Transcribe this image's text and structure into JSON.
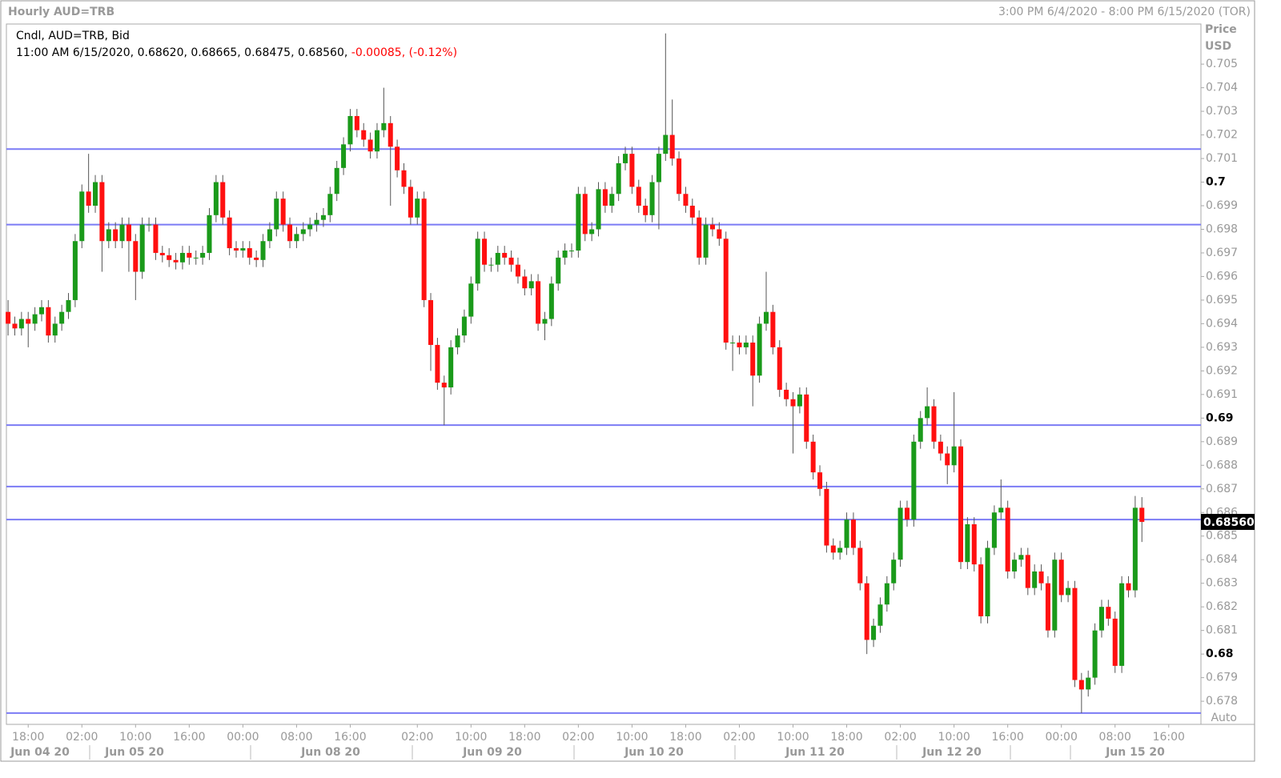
{
  "chart_data": {
    "type": "candlestick",
    "title": "Hourly AUD=TRB",
    "date_range": "3:00 PM 6/4/2020 - 8:00 PM 6/15/2020 (TOR)",
    "legend_line1": "Cndl, AUD=TRB, Bid",
    "legend_line2": "11:00 AM 6/15/2020, 0.68620, 0.68665, 0.68475, 0.68560, ",
    "legend_change": "-0.00085, (-0.12%)",
    "axis_label": "Price",
    "axis_unit": "USD",
    "scale_mode": "Auto",
    "up_color": "#1a9a1a",
    "down_color": "#ff1010",
    "level_color": "#7b7bf5",
    "open": [
      0.6945,
      0.694,
      0.6938,
      0.6942,
      0.694,
      0.6944,
      0.6947,
      0.6935,
      0.694,
      0.6945,
      0.695,
      0.6975,
      0.6996,
      0.699,
      0.7,
      0.6975,
      0.698,
      0.6975,
      0.6982,
      0.6975,
      0.6962,
      0.6982,
      0.6982,
      0.697,
      0.6969,
      0.6967,
      0.6966,
      0.697,
      0.6968,
      0.6968,
      0.697,
      0.6986,
      0.7,
      0.6985,
      0.6972,
      0.6971,
      0.6972,
      0.6968,
      0.6967,
      0.6975,
      0.698,
      0.6993,
      0.6982,
      0.6975,
      0.6978,
      0.698,
      0.6982,
      0.6984,
      0.6986,
      0.6995,
      0.7006,
      0.7016,
      0.7028,
      0.7022,
      0.7018,
      0.7013,
      0.7022,
      0.7025,
      0.7015,
      0.7005,
      0.6998,
      0.6985,
      0.6993,
      0.695,
      0.6931,
      0.6915,
      0.6913,
      0.693,
      0.6935,
      0.6943,
      0.6957,
      0.6976,
      0.6965,
      0.6965,
      0.697,
      0.6968,
      0.6965,
      0.696,
      0.6955,
      0.6958,
      0.694,
      0.6942,
      0.6957,
      0.6968,
      0.6971,
      0.6971,
      0.6995,
      0.6978,
      0.698,
      0.6997,
      0.699,
      0.6995,
      0.7008,
      0.7012,
      0.6998,
      0.699,
      0.6986,
      0.7,
      0.7012,
      0.702,
      0.701,
      0.6995,
      0.699,
      0.6985,
      0.6968,
      0.6982,
      0.698,
      0.6976,
      0.6932,
      0.6932,
      0.693,
      0.6932,
      0.6918,
      0.694,
      0.6945,
      0.693,
      0.6912,
      0.6908,
      0.6905,
      0.691,
      0.689,
      0.6877,
      0.687,
      0.6846,
      0.6843,
      0.6845,
      0.6857,
      0.6845,
      0.683,
      0.6806,
      0.6812,
      0.6821,
      0.683,
      0.684,
      0.6862,
      0.6857,
      0.689,
      0.69,
      0.6905,
      0.689,
      0.6885,
      0.688,
      0.6888,
      0.6839,
      0.6855,
      0.6838,
      0.6816,
      0.6845,
      0.686,
      0.6862,
      0.6835,
      0.684,
      0.6842,
      0.6828,
      0.6835,
      0.683,
      0.681,
      0.684,
      0.6825,
      0.6828,
      0.6789,
      0.6785,
      0.679,
      0.681,
      0.682,
      0.6815,
      0.6795,
      0.683,
      0.6827,
      0.6862
    ],
    "high": [
      0.695,
      0.6943,
      0.6945,
      0.6945,
      0.6947,
      0.695,
      0.695,
      0.6943,
      0.6948,
      0.6953,
      0.6978,
      0.6999,
      0.7012,
      0.7003,
      0.7003,
      0.6983,
      0.6983,
      0.6985,
      0.6985,
      0.6978,
      0.6985,
      0.6985,
      0.6985,
      0.6973,
      0.6972,
      0.697,
      0.6973,
      0.6973,
      0.6971,
      0.6973,
      0.6989,
      0.7003,
      0.7003,
      0.6988,
      0.6975,
      0.6975,
      0.6975,
      0.6971,
      0.6978,
      0.6983,
      0.6996,
      0.6996,
      0.6985,
      0.6981,
      0.6983,
      0.6985,
      0.6987,
      0.6989,
      0.6998,
      0.7009,
      0.7019,
      0.7031,
      0.7031,
      0.7025,
      0.7021,
      0.7025,
      0.704,
      0.7028,
      0.7018,
      0.7008,
      0.7001,
      0.6996,
      0.6996,
      0.6953,
      0.6934,
      0.6918,
      0.6933,
      0.6938,
      0.6946,
      0.696,
      0.6979,
      0.6979,
      0.6968,
      0.6973,
      0.6973,
      0.6971,
      0.6968,
      0.6963,
      0.6961,
      0.6961,
      0.6945,
      0.696,
      0.6971,
      0.6974,
      0.6974,
      0.6998,
      0.6998,
      0.6983,
      0.7,
      0.7,
      0.6998,
      0.7011,
      0.7015,
      0.7015,
      0.7001,
      0.6993,
      0.7003,
      0.7015,
      0.7063,
      0.7035,
      0.7013,
      0.6998,
      0.6993,
      0.6988,
      0.6985,
      0.6985,
      0.6983,
      0.6979,
      0.6935,
      0.6935,
      0.6935,
      0.6935,
      0.6943,
      0.6962,
      0.6948,
      0.6933,
      0.6915,
      0.6911,
      0.6913,
      0.6913,
      0.6893,
      0.688,
      0.6873,
      0.6849,
      0.6848,
      0.686,
      0.686,
      0.6848,
      0.6833,
      0.6815,
      0.6824,
      0.6833,
      0.6843,
      0.6865,
      0.6865,
      0.6893,
      0.6903,
      0.6913,
      0.6908,
      0.6893,
      0.6888,
      0.6911,
      0.6891,
      0.6858,
      0.6858,
      0.6841,
      0.6848,
      0.6863,
      0.6874,
      0.6865,
      0.6843,
      0.6845,
      0.6845,
      0.6838,
      0.6838,
      0.6833,
      0.6843,
      0.6843,
      0.6831,
      0.6831,
      0.6792,
      0.6793,
      0.6813,
      0.6823,
      0.6823,
      0.6818,
      0.6833,
      0.6833,
      0.6867,
      0.68665
    ],
    "low": [
      0.6935,
      0.6935,
      0.6935,
      0.693,
      0.6937,
      0.6941,
      0.6932,
      0.6932,
      0.6937,
      0.6942,
      0.6947,
      0.6972,
      0.6987,
      0.6987,
      0.6962,
      0.6972,
      0.6972,
      0.6972,
      0.6962,
      0.695,
      0.6959,
      0.6979,
      0.6967,
      0.6966,
      0.6964,
      0.6963,
      0.6963,
      0.6965,
      0.6965,
      0.6965,
      0.6967,
      0.6983,
      0.6982,
      0.6969,
      0.6968,
      0.6968,
      0.6965,
      0.6964,
      0.6964,
      0.6972,
      0.6977,
      0.6979,
      0.6972,
      0.6972,
      0.6975,
      0.6977,
      0.6979,
      0.6981,
      0.6983,
      0.6992,
      0.7003,
      0.7013,
      0.7019,
      0.7015,
      0.701,
      0.701,
      0.7019,
      0.699,
      0.7002,
      0.6995,
      0.6982,
      0.6982,
      0.6947,
      0.692,
      0.6912,
      0.6897,
      0.691,
      0.6927,
      0.6932,
      0.694,
      0.6954,
      0.6962,
      0.6962,
      0.6962,
      0.6965,
      0.6962,
      0.6957,
      0.6952,
      0.6952,
      0.6937,
      0.6933,
      0.6939,
      0.6954,
      0.6965,
      0.6968,
      0.6968,
      0.6975,
      0.6975,
      0.6977,
      0.6987,
      0.6987,
      0.6992,
      0.7005,
      0.6995,
      0.6987,
      0.6983,
      0.6983,
      0.698,
      0.7009,
      0.7007,
      0.6992,
      0.6987,
      0.6982,
      0.6965,
      0.6965,
      0.6977,
      0.6973,
      0.6929,
      0.692,
      0.6927,
      0.6927,
      0.6905,
      0.6915,
      0.6937,
      0.6927,
      0.6909,
      0.6905,
      0.6885,
      0.6902,
      0.6887,
      0.6874,
      0.6867,
      0.6843,
      0.684,
      0.684,
      0.6842,
      0.6842,
      0.6827,
      0.68,
      0.6803,
      0.6809,
      0.6818,
      0.6827,
      0.6837,
      0.6854,
      0.6854,
      0.6887,
      0.6897,
      0.6887,
      0.6882,
      0.6872,
      0.6877,
      0.6836,
      0.6836,
      0.6835,
      0.6813,
      0.6813,
      0.6842,
      0.6857,
      0.6832,
      0.6832,
      0.6837,
      0.6825,
      0.6825,
      0.6827,
      0.6807,
      0.6807,
      0.6822,
      0.6822,
      0.6786,
      0.6775,
      0.6782,
      0.6787,
      0.6807,
      0.6812,
      0.6792,
      0.6792,
      0.6824,
      0.6824,
      0.68475
    ],
    "close": [
      0.694,
      0.6938,
      0.6942,
      0.694,
      0.6944,
      0.6947,
      0.6935,
      0.694,
      0.6945,
      0.695,
      0.6975,
      0.6996,
      0.699,
      0.7,
      0.6975,
      0.698,
      0.6975,
      0.6982,
      0.6975,
      0.6962,
      0.6982,
      0.6982,
      0.697,
      0.6969,
      0.6967,
      0.6966,
      0.697,
      0.6968,
      0.6968,
      0.697,
      0.6986,
      0.7,
      0.6985,
      0.6972,
      0.6971,
      0.6972,
      0.6968,
      0.6967,
      0.6975,
      0.698,
      0.6993,
      0.6982,
      0.6975,
      0.6978,
      0.698,
      0.6982,
      0.6984,
      0.6986,
      0.6995,
      0.7006,
      0.7016,
      0.7028,
      0.7022,
      0.7018,
      0.7013,
      0.7022,
      0.7025,
      0.7015,
      0.7005,
      0.6998,
      0.6985,
      0.6993,
      0.695,
      0.6931,
      0.6915,
      0.6913,
      0.693,
      0.6935,
      0.6943,
      0.6957,
      0.6976,
      0.6965,
      0.6965,
      0.697,
      0.6968,
      0.6965,
      0.696,
      0.6955,
      0.6958,
      0.694,
      0.6942,
      0.6957,
      0.6968,
      0.6971,
      0.6971,
      0.6995,
      0.6978,
      0.698,
      0.6997,
      0.699,
      0.6995,
      0.7008,
      0.7012,
      0.6998,
      0.699,
      0.6986,
      0.7,
      0.7012,
      0.702,
      0.701,
      0.6995,
      0.699,
      0.6985,
      0.6968,
      0.6982,
      0.698,
      0.6976,
      0.6932,
      0.6932,
      0.693,
      0.6932,
      0.6918,
      0.694,
      0.6945,
      0.693,
      0.6912,
      0.6908,
      0.6905,
      0.691,
      0.689,
      0.6877,
      0.687,
      0.6846,
      0.6843,
      0.6845,
      0.6857,
      0.6845,
      0.683,
      0.6806,
      0.6812,
      0.6821,
      0.683,
      0.684,
      0.6862,
      0.6857,
      0.689,
      0.69,
      0.6905,
      0.689,
      0.6885,
      0.688,
      0.6888,
      0.6839,
      0.6855,
      0.6838,
      0.6816,
      0.6845,
      0.686,
      0.6862,
      0.6835,
      0.684,
      0.6842,
      0.6828,
      0.6835,
      0.683,
      0.681,
      0.684,
      0.6825,
      0.6828,
      0.6789,
      0.6785,
      0.679,
      0.681,
      0.682,
      0.6815,
      0.6795,
      0.683,
      0.6827,
      0.6862,
      0.6856
    ],
    "levels": [
      0.7014,
      0.6982,
      0.6897,
      0.6871,
      0.6857,
      0.6775
    ],
    "last_price": {
      "value": 0.6856,
      "label": "0.68560"
    },
    "xlim": [
      -0.25,
      177.8
    ],
    "xticks": [
      {
        "value": 3,
        "label": "18:00"
      },
      {
        "value": 11,
        "label": "02:00"
      },
      {
        "value": 19,
        "label": "10:00"
      },
      {
        "value": 27,
        "label": "16:00"
      },
      {
        "value": 35,
        "label": "00:00"
      },
      {
        "value": 43,
        "label": "08:00"
      },
      {
        "value": 51,
        "label": "16:00"
      },
      {
        "value": 61,
        "label": "02:00"
      },
      {
        "value": 69,
        "label": "10:00"
      },
      {
        "value": 77,
        "label": "18:00"
      },
      {
        "value": 85,
        "label": "02:00"
      },
      {
        "value": 93,
        "label": "10:00"
      },
      {
        "value": 101,
        "label": "18:00"
      },
      {
        "value": 109,
        "label": "02:00"
      },
      {
        "value": 117,
        "label": "10:00"
      },
      {
        "value": 125,
        "label": "18:00"
      },
      {
        "value": 133,
        "label": "02:00"
      },
      {
        "value": 141,
        "label": "10:00"
      },
      {
        "value": 149,
        "label": "16:00"
      },
      {
        "value": 157,
        "label": "00:00"
      },
      {
        "value": 165,
        "label": "08:00"
      },
      {
        "value": 173,
        "label": "16:00"
      }
    ],
    "date_labels": [
      "Jun 04 20",
      "Jun 05 20",
      "Jun 08 20",
      "Jun 09 20",
      "Jun 10 20",
      "Jun 11 20",
      "Jun 12 20",
      "Jun 15 20"
    ],
    "ylim": [
      0.67702,
      0.7067
    ],
    "yticks": [
      0.678,
      0.679,
      0.68,
      0.681,
      0.682,
      0.683,
      0.684,
      0.685,
      0.686,
      0.687,
      0.688,
      0.689,
      0.69,
      0.691,
      0.692,
      0.693,
      0.694,
      0.695,
      0.696,
      0.697,
      0.698,
      0.699,
      0.7,
      0.701,
      0.702,
      0.703,
      0.704,
      0.705
    ]
  }
}
